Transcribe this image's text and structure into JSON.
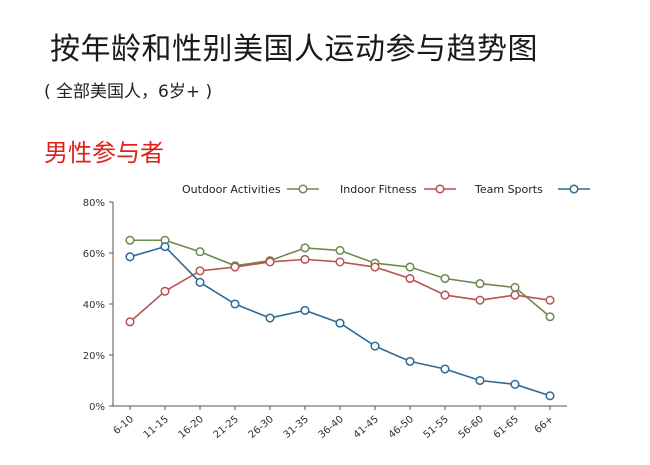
{
  "title": "按年龄和性别美国人运动参与趋势图",
  "subtitle": "( 全部美国人，6岁+ )",
  "section_title": "男性参与者",
  "chart_data": {
    "type": "line",
    "categories": [
      "6-10",
      "11-15",
      "16-20",
      "21-25",
      "26-30",
      "31-35",
      "36-40",
      "41-45",
      "46-50",
      "51-55",
      "56-60",
      "61-65",
      "66+"
    ],
    "ylim": [
      0,
      80
    ],
    "yticks": [
      "0%",
      "20%",
      "40%",
      "60%",
      "80%"
    ],
    "grid": false,
    "legend": "top",
    "series": [
      {
        "name": "Outdoor Activities",
        "color": "#6e8a4e",
        "values": [
          65,
          65,
          60.5,
          55,
          57,
          62,
          61,
          56,
          54.5,
          50,
          48,
          46.5,
          35
        ]
      },
      {
        "name": "Indoor Fitness",
        "color": "#b85450",
        "values": [
          33,
          45,
          53,
          54.5,
          56.5,
          57.5,
          56.5,
          54.5,
          50,
          43.5,
          41.5,
          43.5,
          41.5
        ]
      },
      {
        "name": "Team Sports",
        "color": "#2d6a96",
        "values": [
          58.5,
          62.5,
          48.5,
          40,
          34.5,
          37.5,
          32.5,
          23.5,
          17.5,
          14.5,
          10,
          8.5,
          4
        ]
      }
    ]
  }
}
